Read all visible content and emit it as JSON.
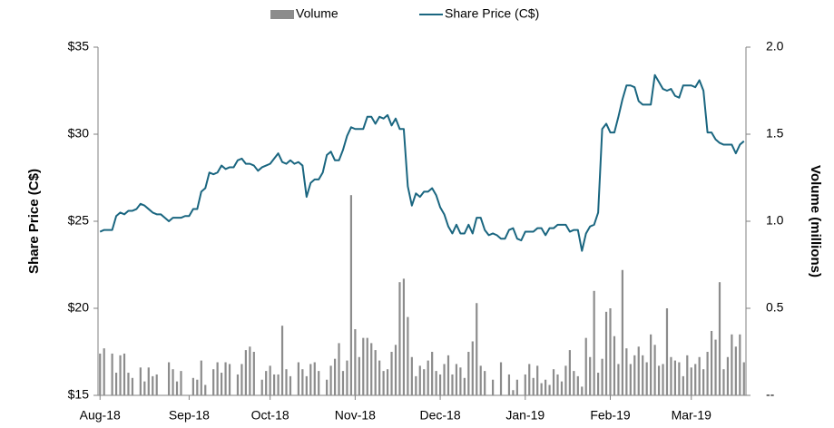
{
  "chart_data": {
    "type": "combo",
    "y_label": "Share Price (C$)",
    "y2_label": "Volume (millions)",
    "categories": [
      "Aug-18",
      null,
      null,
      null,
      null,
      null,
      null,
      null,
      null,
      null,
      null,
      null,
      null,
      null,
      null,
      null,
      null,
      null,
      null,
      null,
      null,
      null,
      "Sep-18",
      null,
      null,
      null,
      null,
      null,
      null,
      null,
      null,
      null,
      null,
      null,
      null,
      null,
      null,
      null,
      null,
      null,
      null,
      null,
      "Oct-18",
      null,
      null,
      null,
      null,
      null,
      null,
      null,
      null,
      null,
      null,
      null,
      null,
      null,
      null,
      null,
      null,
      null,
      null,
      null,
      null,
      "Nov-18",
      null,
      null,
      null,
      null,
      null,
      null,
      null,
      null,
      null,
      null,
      null,
      null,
      null,
      null,
      null,
      null,
      null,
      null,
      null,
      null,
      "Dec-18",
      null,
      null,
      null,
      null,
      null,
      null,
      null,
      null,
      null,
      null,
      null,
      null,
      null,
      null,
      null,
      null,
      null,
      null,
      null,
      null,
      "Jan-19",
      null,
      null,
      null,
      null,
      null,
      null,
      null,
      null,
      null,
      null,
      null,
      null,
      null,
      null,
      null,
      null,
      null,
      null,
      null,
      null,
      "Feb-19",
      null,
      null,
      null,
      null,
      null,
      null,
      null,
      null,
      null,
      null,
      null,
      null,
      null,
      null,
      null,
      null,
      null,
      null,
      null,
      "Mar-19",
      null,
      null,
      null,
      null,
      null,
      null,
      null,
      null,
      null,
      null,
      null,
      null,
      null
    ],
    "series": [
      {
        "name": "Volume",
        "type": "bar",
        "axis": "y2",
        "color": "#8c8c8c",
        "values": [
          0.24,
          0.27,
          0,
          0.24,
          0.13,
          0.23,
          0.24,
          0.13,
          0.1,
          0,
          0.16,
          0.08,
          0.16,
          0.11,
          0.12,
          0,
          0,
          0.19,
          0.15,
          0.08,
          0.14,
          0,
          0,
          0.1,
          0.09,
          0.2,
          0.06,
          0,
          0.15,
          0.19,
          0.13,
          0.19,
          0.18,
          0,
          0.12,
          0.18,
          0.26,
          0.28,
          0.25,
          0,
          0.09,
          0.14,
          0.17,
          0.12,
          0.12,
          0.4,
          0.15,
          0.11,
          0,
          0.19,
          0.15,
          0.11,
          0.18,
          0.19,
          0.14,
          0,
          0.09,
          0.17,
          0.21,
          0.3,
          0.14,
          0.2,
          1.15,
          0.38,
          0.22,
          0.33,
          0.33,
          0.3,
          0.26,
          0.2,
          0.14,
          0.15,
          0.25,
          0.29,
          0.65,
          0.67,
          0.45,
          0.22,
          0.11,
          0.17,
          0.15,
          0.2,
          0.25,
          0.14,
          0.12,
          0.18,
          0.23,
          0.12,
          0.18,
          0.16,
          0.1,
          0.25,
          0.31,
          0.53,
          0.17,
          0.14,
          0,
          0.09,
          0,
          0.19,
          0,
          0.12,
          0.03,
          0.09,
          0,
          0.12,
          0.18,
          0.1,
          0.17,
          0.07,
          0.09,
          0.06,
          0.15,
          0.12,
          0.08,
          0.17,
          0.26,
          0.14,
          0.11,
          0.05,
          0.33,
          0.22,
          0.6,
          0.13,
          0.21,
          0.48,
          0.5,
          0.34,
          0.18,
          0.72,
          0.27,
          0.18,
          0.23,
          0.28,
          0.23,
          0.19,
          0.35,
          0.29,
          0.17,
          0.18,
          0.5,
          0.22,
          0.2,
          0.19,
          0.11,
          0.23,
          0.16,
          0.18,
          0.22,
          0.15,
          0.25,
          0.37,
          0.32,
          0.65,
          0.15,
          0.22,
          0.35,
          0.28,
          0.35,
          0.19
        ]
      },
      {
        "name": "Share Price (C$)",
        "type": "line",
        "axis": "y",
        "color": "#1a6680",
        "values": [
          24.4,
          24.5,
          24.5,
          24.5,
          25.3,
          25.5,
          25.4,
          25.6,
          25.6,
          25.7,
          26.0,
          25.9,
          25.7,
          25.5,
          25.4,
          25.4,
          25.2,
          25.0,
          25.2,
          25.2,
          25.2,
          25.3,
          25.3,
          25.7,
          25.7,
          26.7,
          26.9,
          27.8,
          27.7,
          27.8,
          28.2,
          28.0,
          28.1,
          28.1,
          28.5,
          28.6,
          28.3,
          28.3,
          28.2,
          27.9,
          28.1,
          28.2,
          28.3,
          28.6,
          28.9,
          28.4,
          28.3,
          28.5,
          28.3,
          28.4,
          28.2,
          26.4,
          27.2,
          27.4,
          27.4,
          27.8,
          28.8,
          29.0,
          28.5,
          28.5,
          29.1,
          29.9,
          30.4,
          30.3,
          30.3,
          30.3,
          31.0,
          31.0,
          30.6,
          31.0,
          30.9,
          31.1,
          30.5,
          30.9,
          30.3,
          30.3,
          27.0,
          25.9,
          26.6,
          26.4,
          26.7,
          26.7,
          26.9,
          26.5,
          25.8,
          25.4,
          24.7,
          24.3,
          24.8,
          24.3,
          24.3,
          24.8,
          24.3,
          25.2,
          25.2,
          24.5,
          24.2,
          24.3,
          24.2,
          24.0,
          24.0,
          24.5,
          24.6,
          24.0,
          23.9,
          24.4,
          24.4,
          24.4,
          24.6,
          24.6,
          24.2,
          24.6,
          24.6,
          24.8,
          24.8,
          24.8,
          24.4,
          24.5,
          24.5,
          23.3,
          24.3,
          24.7,
          24.8,
          25.5,
          30.3,
          30.6,
          30.1,
          30.1,
          31.0,
          32.0,
          32.8,
          32.8,
          32.7,
          31.9,
          31.7,
          31.7,
          31.7,
          33.4,
          33.0,
          32.6,
          32.5,
          32.6,
          32.2,
          32.1,
          32.8,
          32.8,
          32.8,
          32.7,
          33.1,
          32.5,
          30.1,
          30.1,
          29.7,
          29.5,
          29.4,
          29.4,
          29.4,
          28.9,
          29.4,
          29.6
        ]
      }
    ],
    "ylim": [
      15,
      35
    ],
    "yticks": [
      {
        "value": 15,
        "label": "$15"
      },
      {
        "value": 20,
        "label": "$20"
      },
      {
        "value": 25,
        "label": "$25"
      },
      {
        "value": 30,
        "label": "$30"
      },
      {
        "value": 35,
        "label": "$35"
      }
    ],
    "y2lim": [
      0,
      2.0
    ],
    "y2ticks": [
      {
        "value": 0,
        "label": "--"
      },
      {
        "value": 0.5,
        "label": "0.5"
      },
      {
        "value": 1.0,
        "label": "1.0"
      },
      {
        "value": 1.5,
        "label": "1.5"
      },
      {
        "value": 2.0,
        "label": "2.0"
      }
    ],
    "legend": "top"
  }
}
